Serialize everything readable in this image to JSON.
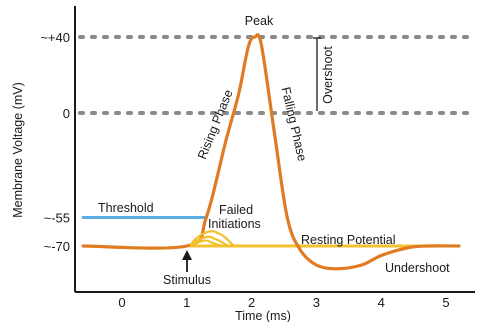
{
  "chart_data": {
    "type": "line",
    "title": "",
    "xlabel": "Time (ms)",
    "ylabel": "Membrane Voltage (mV)",
    "xlim": [
      -0.6,
      5.4
    ],
    "ylim": [
      -85,
      45
    ],
    "x_ticks": [
      "0",
      "1",
      "2",
      "3",
      "4",
      "5"
    ],
    "y_ticks": [
      {
        "value": 40,
        "label": "~+40"
      },
      {
        "value": 0,
        "label": "0"
      },
      {
        "value": -55,
        "label": "~-55"
      },
      {
        "value": -70,
        "label": "~-70"
      }
    ],
    "grid": false,
    "series": [
      {
        "color": "#e07b22",
        "points": [
          [
            -0.6,
            -70
          ],
          [
            1.0,
            -70
          ],
          [
            1.3,
            -55
          ],
          [
            1.6,
            -15
          ],
          [
            1.8,
            10
          ],
          [
            1.95,
            35
          ],
          [
            2.05,
            40
          ],
          [
            2.15,
            36
          ],
          [
            2.35,
            -10
          ],
          [
            2.55,
            -55
          ],
          [
            2.75,
            -72
          ],
          [
            3.0,
            -80
          ],
          [
            3.3,
            -82
          ],
          [
            3.7,
            -80
          ],
          [
            4.0,
            -75
          ],
          [
            4.4,
            -71
          ],
          [
            4.7,
            -70
          ],
          [
            5.2,
            -70
          ]
        ]
      },
      {
        "color": "#5aace2",
        "points": [
          [
            -0.6,
            -55
          ],
          [
            1.3,
            -55
          ]
        ]
      },
      {
        "color": "#f2c12e",
        "points": [
          [
            1.05,
            -70
          ],
          [
            5.2,
            -70
          ]
        ]
      }
    ],
    "failed_initiations": {
      "color": "#f2c12e",
      "arcs": [
        [
          1.05,
          1.75,
          -63
        ],
        [
          1.05,
          1.65,
          -66
        ],
        [
          1.05,
          1.55,
          -68
        ]
      ]
    },
    "reference_levels": [
      40,
      0
    ],
    "annotations": {
      "peak": "Peak",
      "rising": "Rising Phase",
      "falling": "Falling Phase",
      "overshoot": "Overshoot",
      "threshold": "Threshold",
      "failed1": "Failed",
      "failed2": "Initiations",
      "resting": "Resting Potential",
      "stimulus": "Stimulus",
      "undershoot": "Undershoot"
    }
  }
}
